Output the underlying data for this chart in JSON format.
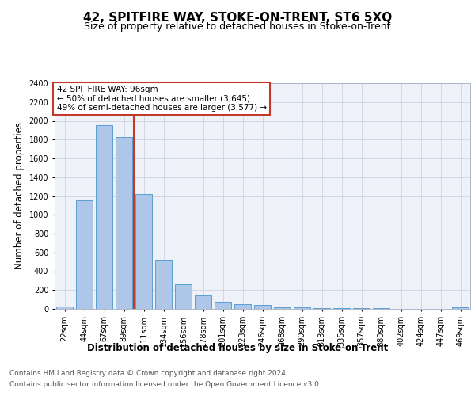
{
  "title": "42, SPITFIRE WAY, STOKE-ON-TRENT, ST6 5XQ",
  "subtitle": "Size of property relative to detached houses in Stoke-on-Trent",
  "xlabel": "Distribution of detached houses by size in Stoke-on-Trent",
  "ylabel": "Number of detached properties",
  "bar_labels": [
    "22sqm",
    "44sqm",
    "67sqm",
    "89sqm",
    "111sqm",
    "134sqm",
    "156sqm",
    "178sqm",
    "201sqm",
    "223sqm",
    "246sqm",
    "268sqm",
    "290sqm",
    "313sqm",
    "335sqm",
    "357sqm",
    "380sqm",
    "402sqm",
    "424sqm",
    "447sqm",
    "469sqm"
  ],
  "bar_values": [
    25,
    1150,
    1950,
    1830,
    1220,
    520,
    265,
    140,
    80,
    50,
    40,
    20,
    15,
    10,
    8,
    5,
    5,
    3,
    3,
    3,
    15
  ],
  "bar_color": "#aec6e8",
  "bar_edge_color": "#5a9fd4",
  "vline_x": 3.5,
  "vline_color": "#c0392b",
  "ylim": [
    0,
    2400
  ],
  "yticks": [
    0,
    200,
    400,
    600,
    800,
    1000,
    1200,
    1400,
    1600,
    1800,
    2000,
    2200,
    2400
  ],
  "annotation_title": "42 SPITFIRE WAY: 96sqm",
  "annotation_line1": "← 50% of detached houses are smaller (3,645)",
  "annotation_line2": "49% of semi-detached houses are larger (3,577) →",
  "annotation_box_color": "#ffffff",
  "annotation_edge_color": "#c0392b",
  "footer_line1": "Contains HM Land Registry data © Crown copyright and database right 2024.",
  "footer_line2": "Contains public sector information licensed under the Open Government Licence v3.0.",
  "background_color": "#ffffff",
  "grid_color": "#d0d8e8",
  "title_fontsize": 11,
  "subtitle_fontsize": 9,
  "axis_label_fontsize": 8.5,
  "tick_fontsize": 7,
  "footer_fontsize": 6.5,
  "annotation_fontsize": 7.5
}
